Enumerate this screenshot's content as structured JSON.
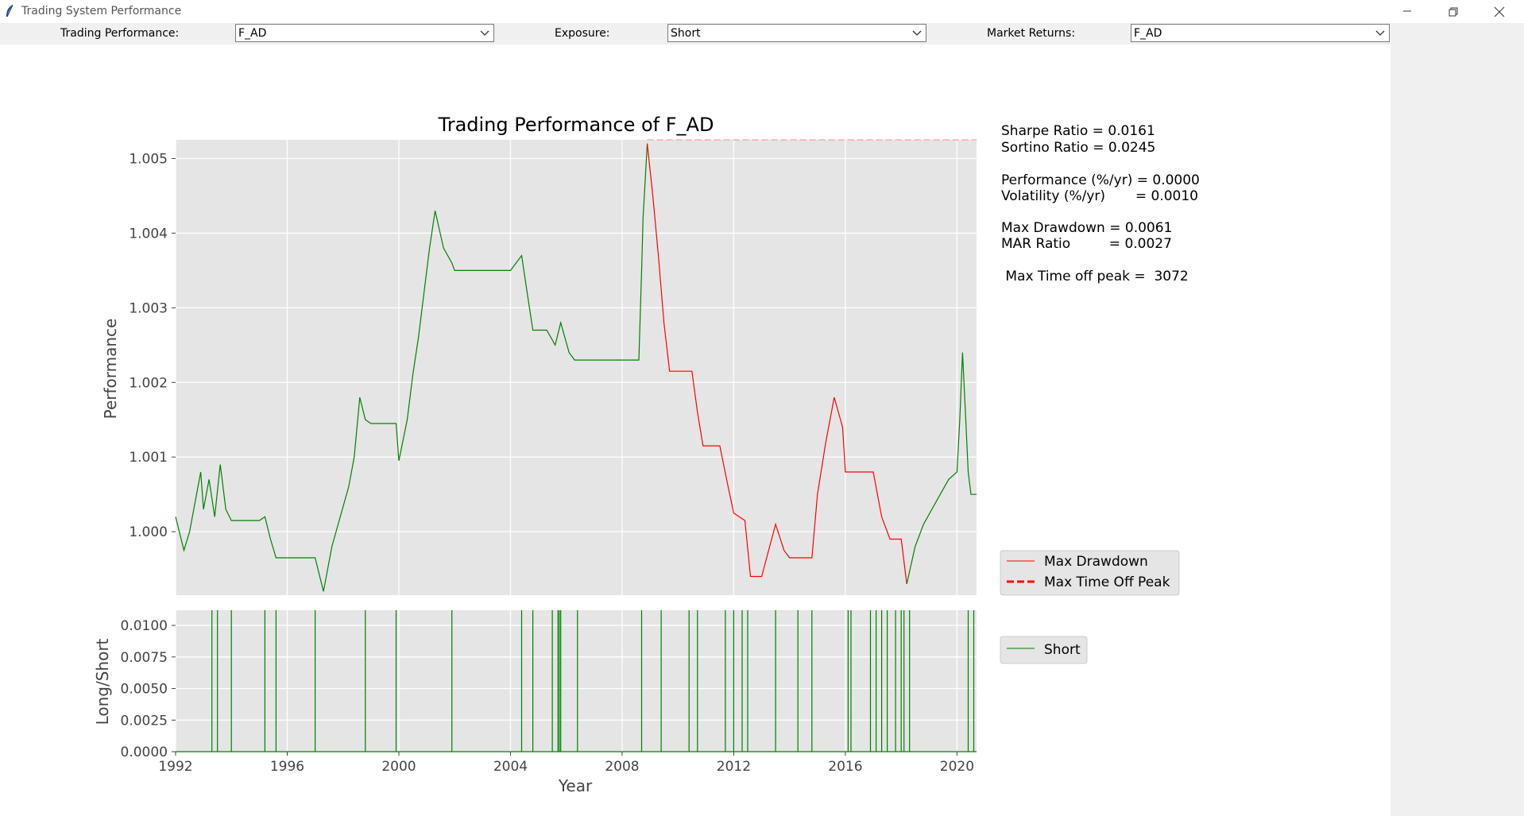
{
  "window": {
    "title": "Trading System Performance",
    "controls": [
      "minimize",
      "restore",
      "close"
    ]
  },
  "toolbar": {
    "trading_performance_label": "Trading Performance:",
    "trading_performance_value": "F_AD",
    "exposure_label": "Exposure:",
    "exposure_value": "Short",
    "market_returns_label": "Market Returns:",
    "market_returns_value": "F_AD"
  },
  "stats": {
    "sharpe": "Sharpe Ratio = 0.0161",
    "sortino": "Sortino Ratio = 0.0245",
    "performance": "Performance (%/yr) = 0.0000",
    "volatility": "Volatility (%/yr)       = 0.0010",
    "max_drawdown": "Max Drawdown = 0.0061",
    "mar": "MAR Ratio         = 0.0027",
    "max_time_off_peak": " Max Time off peak =  3072"
  },
  "legend_top": {
    "items": [
      {
        "label": "Max Drawdown",
        "color": "#ff0000",
        "style": "solid"
      },
      {
        "label": "Max Time Off Peak",
        "color": "#ff0000",
        "style": "dashed"
      }
    ]
  },
  "legend_bottom": {
    "items": [
      {
        "label": "Short",
        "color": "#008000",
        "style": "solid"
      }
    ]
  },
  "colors": {
    "plot_bg": "#e5e5e5",
    "grid": "#ffffff",
    "gain": "#008000",
    "drawdown": "#ff0000",
    "peak_line": "#ffaaaa"
  },
  "chart_data": [
    {
      "type": "line",
      "title": "Trading Performance of F_AD",
      "xlabel": "",
      "ylabel": "Performance",
      "xlim": [
        1992.0,
        2020.7
      ],
      "ylim": [
        0.99915,
        1.00525
      ],
      "yticks": [
        1.0,
        1.001,
        1.002,
        1.003,
        1.004,
        1.005
      ],
      "ytick_labels": [
        "1.000",
        "1.001",
        "1.002",
        "1.003",
        "1.004",
        "1.005"
      ],
      "grid": true,
      "series": [
        {
          "name": "",
          "color": "#008000",
          "x": [
            1992.0,
            1992.3,
            1992.5,
            1992.7,
            1992.9,
            1993.0,
            1993.2,
            1993.4,
            1993.6,
            1993.8,
            1994.0,
            1994.5,
            1995.0,
            1995.2,
            1995.4,
            1995.6,
            1996.0,
            1996.5,
            1997.0,
            1997.3,
            1997.6,
            1997.9,
            1998.2,
            1998.4,
            1998.6,
            1998.8,
            1999.0,
            1999.5,
            1999.9,
            2000.0,
            2000.3,
            2000.5,
            2000.7,
            2000.9,
            2001.1,
            2001.3,
            2001.6,
            2001.9,
            2002.0,
            2003.0,
            2004.0,
            2004.4,
            2004.6,
            2004.8,
            2005.0,
            2005.3,
            2005.6,
            2005.8,
            2006.1,
            2006.3,
            2006.4,
            2007.0,
            2008.0,
            2008.6,
            2008.7,
            2008.75,
            2008.9
          ],
          "y": [
            1.0002,
            0.99975,
            1.0,
            1.0004,
            1.0008,
            1.0003,
            1.0007,
            1.0002,
            1.0009,
            1.0003,
            1.00015,
            1.00015,
            1.00015,
            1.0002,
            0.9999,
            0.99965,
            0.99965,
            0.99965,
            0.99965,
            0.9992,
            0.9998,
            1.0002,
            1.0006,
            1.001,
            1.0018,
            1.0015,
            1.00145,
            1.00145,
            1.00145,
            1.00095,
            1.0015,
            1.0021,
            1.0026,
            1.0032,
            1.0038,
            1.0043,
            1.0038,
            1.0036,
            1.0035,
            1.0035,
            1.0035,
            1.0037,
            1.0032,
            1.0027,
            1.0027,
            1.0027,
            1.0025,
            1.0028,
            1.0024,
            1.0023,
            1.0023,
            1.0023,
            1.0023,
            1.0023,
            1.0035,
            1.0042,
            1.0052
          ]
        },
        {
          "name": "Max Drawdown",
          "color": "#ff0000",
          "x": [
            2008.9,
            2009.1,
            2009.3,
            2009.5,
            2009.7,
            2010.5,
            2010.7,
            2010.9,
            2011.5,
            2011.8,
            2012.0,
            2012.4,
            2012.6,
            2013.0,
            2013.5,
            2013.8,
            2014.0,
            2014.3,
            2014.8,
            2015.0,
            2015.3,
            2015.6,
            2015.9,
            2016.0,
            2016.2,
            2016.5,
            2017.0,
            2017.3,
            2017.6,
            2018.0,
            2018.2
          ],
          "y": [
            1.0052,
            1.0045,
            1.0037,
            1.0028,
            1.00215,
            1.00215,
            1.0016,
            1.00115,
            1.00115,
            1.0006,
            1.00025,
            1.00015,
            0.9994,
            0.9994,
            1.0001,
            0.99975,
            0.99965,
            0.99965,
            0.99965,
            1.0005,
            1.0012,
            1.0018,
            1.0014,
            1.0008,
            1.0008,
            1.0008,
            1.0008,
            1.0002,
            0.9999,
            0.9999,
            0.9993
          ]
        },
        {
          "name": "",
          "color": "#008000",
          "x": [
            2018.2,
            2018.5,
            2018.8,
            2019.1,
            2019.4,
            2019.7,
            2020.0,
            2020.1,
            2020.2,
            2020.3,
            2020.4,
            2020.5,
            2020.7
          ],
          "y": [
            0.9993,
            0.9998,
            1.0001,
            1.0003,
            1.0005,
            1.0007,
            1.0008,
            1.0015,
            1.0024,
            1.0016,
            1.0008,
            1.0005,
            1.0005
          ]
        },
        {
          "name": "Max Time Off Peak",
          "color": "#ffaaaa",
          "style": "dashed",
          "x": [
            2008.9,
            2020.7
          ],
          "y": [
            1.00525,
            1.00525
          ]
        }
      ]
    },
    {
      "type": "line",
      "xlabel": "Year",
      "ylabel": "Long/Short",
      "xlim": [
        1992.0,
        2020.7
      ],
      "ylim": [
        0.0,
        0.0112
      ],
      "xticks": [
        1992,
        1996,
        2000,
        2004,
        2008,
        2012,
        2016,
        2020
      ],
      "xtick_labels": [
        "1992",
        "1996",
        "2000",
        "2004",
        "2008",
        "2012",
        "2016",
        "2020"
      ],
      "yticks": [
        0.0,
        0.0025,
        0.005,
        0.0075,
        0.01
      ],
      "ytick_labels": [
        "0.0000",
        "0.0025",
        "0.0050",
        "0.0075",
        "0.0100"
      ],
      "grid": true,
      "series": [
        {
          "name": "Short",
          "color": "#008000",
          "spike_height": 0.0112,
          "spikes": [
            1993.3,
            1993.5,
            1994.0,
            1995.2,
            1995.6,
            1997.0,
            1998.8,
            1999.9,
            2001.9,
            2004.4,
            2004.8,
            2005.5,
            2005.7,
            2005.75,
            2005.8,
            2006.4,
            2008.7,
            2009.4,
            2010.4,
            2010.7,
            2011.7,
            2012.0,
            2012.3,
            2012.5,
            2013.5,
            2014.3,
            2014.8,
            2016.1,
            2016.2,
            2016.9,
            2017.1,
            2017.3,
            2017.5,
            2017.8,
            2018.0,
            2018.1,
            2018.3,
            2020.4,
            2020.6
          ]
        }
      ]
    }
  ]
}
